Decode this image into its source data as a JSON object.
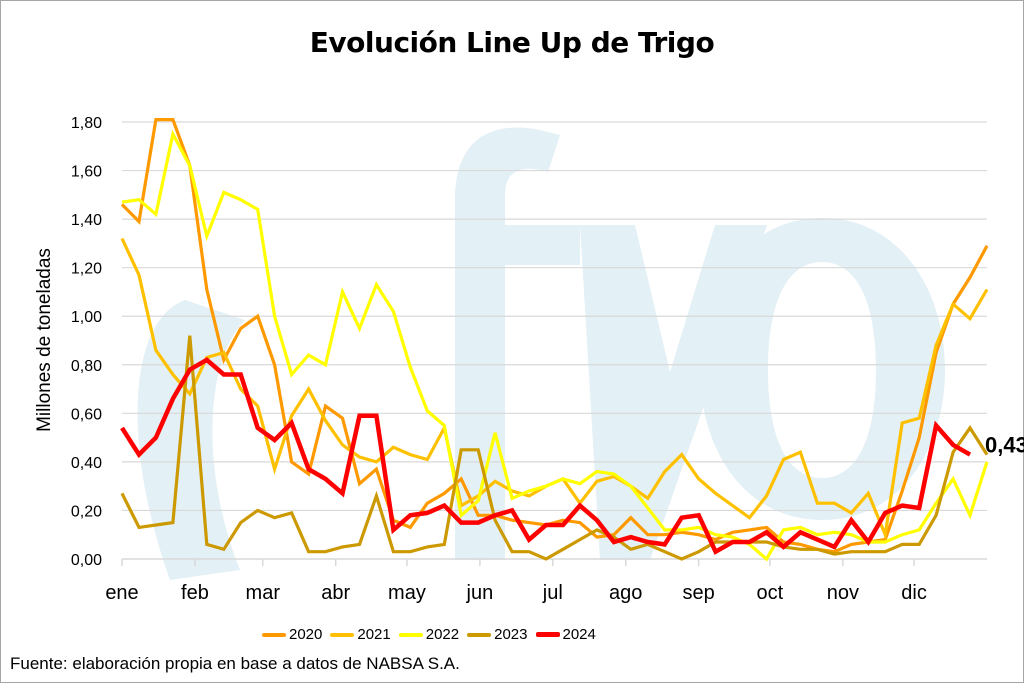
{
  "chart_data": {
    "type": "line",
    "title": "Evolución Line Up de Trigo",
    "xlabel": "",
    "ylabel": "Millones de toneladas",
    "ylim": [
      0,
      1.8
    ],
    "y_ticks": [
      "0,00",
      "0,20",
      "0,40",
      "0,60",
      "0,80",
      "1,00",
      "1,20",
      "1,40",
      "1,60",
      "1,80"
    ],
    "y_tick_values": [
      0,
      0.2,
      0.4,
      0.6,
      0.8,
      1.0,
      1.2,
      1.4,
      1.6,
      1.8
    ],
    "x_tick_labels": [
      "ene",
      "feb",
      "mar",
      "abr",
      "may",
      "jun",
      "jul",
      "ago",
      "sep",
      "oct",
      "nov",
      "dic"
    ],
    "x_tick_weeks": [
      0,
      4.3,
      8.3,
      12.6,
      16.8,
      21.1,
      25.4,
      29.7,
      34.0,
      38.2,
      42.5,
      46.7
    ],
    "x_unit": "week of year",
    "grid": true,
    "legend_position": "bottom",
    "annotation": {
      "series": "2024",
      "text": "0,43",
      "value": 0.43
    },
    "series": [
      {
        "name": "2020",
        "color": "#FF9900",
        "values": [
          1.46,
          1.39,
          1.81,
          1.81,
          1.62,
          1.11,
          0.82,
          0.95,
          1.0,
          0.8,
          0.4,
          0.35,
          0.63,
          0.58,
          0.31,
          0.37,
          0.16,
          0.13,
          0.23,
          0.27,
          0.33,
          0.18,
          0.18,
          0.16,
          0.15,
          0.14,
          0.16,
          0.15,
          0.09,
          0.1,
          0.17,
          0.1,
          0.1,
          0.11,
          0.1,
          0.08,
          0.11,
          0.12,
          0.13,
          0.07,
          0.06,
          0.04,
          0.03,
          0.06,
          0.07,
          0.08,
          0.28,
          0.5,
          0.85,
          1.05,
          1.16,
          1.29
        ]
      },
      {
        "name": "2021",
        "color": "#FFC000",
        "values": [
          1.32,
          1.17,
          0.86,
          0.76,
          0.68,
          0.83,
          0.85,
          0.7,
          0.63,
          0.37,
          0.59,
          0.7,
          0.57,
          0.47,
          0.42,
          0.4,
          0.46,
          0.43,
          0.41,
          0.54,
          0.22,
          0.26,
          0.32,
          0.28,
          0.26,
          0.3,
          0.33,
          0.23,
          0.32,
          0.34,
          0.3,
          0.25,
          0.36,
          0.43,
          0.33,
          0.27,
          0.22,
          0.17,
          0.26,
          0.41,
          0.44,
          0.23,
          0.23,
          0.19,
          0.27,
          0.1,
          0.56,
          0.58,
          0.88,
          1.05,
          0.99,
          1.11
        ]
      },
      {
        "name": "2022",
        "color": "#FFFF00",
        "values": [
          1.47,
          1.48,
          1.42,
          1.75,
          1.62,
          1.33,
          1.51,
          1.48,
          1.44,
          1.0,
          0.76,
          0.84,
          0.8,
          1.1,
          0.95,
          1.13,
          1.02,
          0.79,
          0.61,
          0.55,
          0.18,
          0.24,
          0.52,
          0.25,
          0.28,
          0.3,
          0.33,
          0.31,
          0.36,
          0.35,
          0.3,
          0.21,
          0.12,
          0.12,
          0.13,
          0.1,
          0.09,
          0.06,
          0.0,
          0.12,
          0.13,
          0.1,
          0.11,
          0.1,
          0.07,
          0.07,
          0.1,
          0.12,
          0.23,
          0.33,
          0.18,
          0.4
        ]
      },
      {
        "name": "2023",
        "color": "#CC9900",
        "values": [
          0.27,
          0.13,
          0.14,
          0.15,
          0.92,
          0.06,
          0.04,
          0.15,
          0.2,
          0.17,
          0.19,
          0.03,
          0.03,
          0.05,
          0.06,
          0.26,
          0.03,
          0.03,
          0.05,
          0.06,
          0.45,
          0.45,
          0.16,
          0.03,
          0.03,
          0.0,
          0.04,
          0.08,
          0.12,
          0.09,
          0.04,
          0.06,
          0.03,
          0.0,
          0.03,
          0.07,
          0.07,
          0.07,
          0.07,
          0.05,
          0.04,
          0.04,
          0.02,
          0.03,
          0.03,
          0.03,
          0.06,
          0.06,
          0.18,
          0.44,
          0.54,
          0.43
        ]
      },
      {
        "name": "2024",
        "color": "#FF0000",
        "values": [
          0.54,
          0.43,
          0.5,
          0.66,
          0.78,
          0.82,
          0.76,
          0.76,
          0.54,
          0.49,
          0.56,
          0.37,
          0.33,
          0.27,
          0.59,
          0.59,
          0.12,
          0.18,
          0.19,
          0.22,
          0.15,
          0.15,
          0.18,
          0.2,
          0.08,
          0.14,
          0.14,
          0.22,
          0.16,
          0.07,
          0.09,
          0.07,
          0.06,
          0.17,
          0.18,
          0.03,
          0.07,
          0.07,
          0.11,
          0.05,
          0.11,
          0.08,
          0.05,
          0.16,
          0.07,
          0.19,
          0.22,
          0.21,
          0.55,
          0.47,
          0.43
        ]
      }
    ]
  },
  "legend": {
    "items": [
      "2020",
      "2021",
      "2022",
      "2023",
      "2024"
    ]
  },
  "watermark": {
    "text": "ofyo",
    "color": "#E3F0F5"
  },
  "source": "Fuente: elaboración propia en base a datos de NABSA S.A."
}
